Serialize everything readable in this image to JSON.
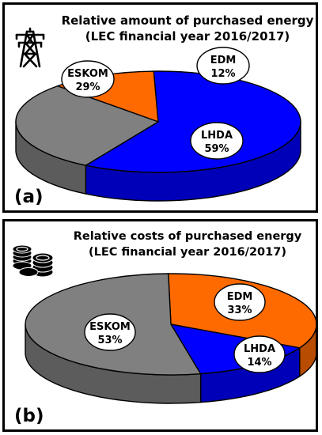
{
  "chart_data": [
    {
      "type": "pie",
      "panel_label": "(a)",
      "title": "Relative amount of purchased energy",
      "subtitle": "(LEC financial year 2016/2017)",
      "slices": [
        {
          "name": "EDM",
          "value": 12,
          "label": "12%",
          "color": "#ff6a00"
        },
        {
          "name": "LHDA",
          "value": 59,
          "label": "59%",
          "color": "#0000ff"
        },
        {
          "name": "ESKOM",
          "value": 29,
          "label": "29%",
          "color": "#808080"
        }
      ],
      "icon": "power-pylon-icon"
    },
    {
      "type": "pie",
      "panel_label": "(b)",
      "title": "Relative costs of purchased energy",
      "subtitle": "(LEC financial year 2016/2017)",
      "slices": [
        {
          "name": "EDM",
          "value": 33,
          "label": "33%",
          "color": "#ff6a00"
        },
        {
          "name": "LHDA",
          "value": 14,
          "label": "14%",
          "color": "#0000ff"
        },
        {
          "name": "ESKOM",
          "value": 53,
          "label": "53%",
          "color": "#808080"
        }
      ],
      "icon": "coins-icon"
    }
  ]
}
